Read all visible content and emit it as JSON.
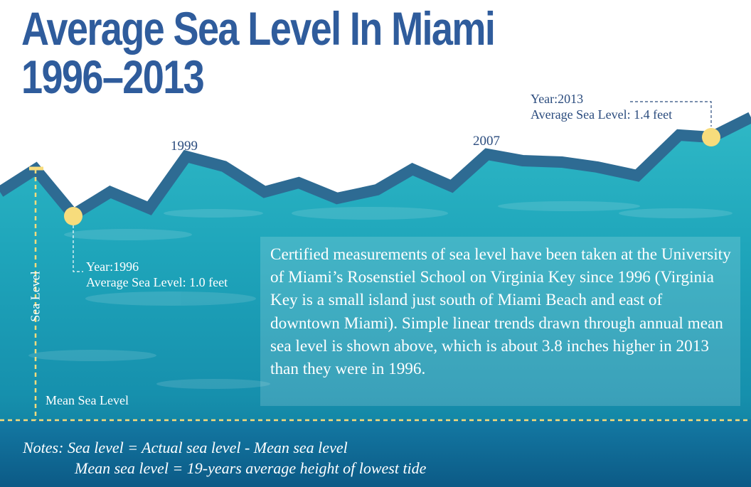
{
  "title_line1": "Average Sea Level In Miami",
  "title_line2": "1996–2013",
  "chart_data": {
    "type": "line",
    "x": [
      1996,
      2013
    ],
    "values": [
      1.0,
      1.4
    ],
    "ylabel": "Sea Level",
    "baseline_label": "Mean Sea Level",
    "year_labels": [
      "1999",
      "2007"
    ],
    "annotations": [
      {
        "year_text": "Year:1996",
        "level_text": "Average Sea Level: 1.0 feet"
      },
      {
        "year_text": "Year:2013",
        "level_text": "Average Sea Level: 1.4 feet"
      }
    ],
    "marker_color": "#f7dc7c",
    "line_color": "#2e6b93"
  },
  "description": "Certified measurements of sea level have been taken at the University of Miami’s Rosenstiel School on Virginia Key since 1996 (Virginia Key is a small island just south of Miami  Beach and east of downtown Miami).  Simple linear trends drawn through annual mean sea level is shown above, which is about 3.8 inches higher in 2013 than they were in 1996.",
  "notes": {
    "line1": "Notes: Sea level = Actual sea level - Mean sea level",
    "line2": "Mean sea level = 19-years average height of lowest tide"
  }
}
